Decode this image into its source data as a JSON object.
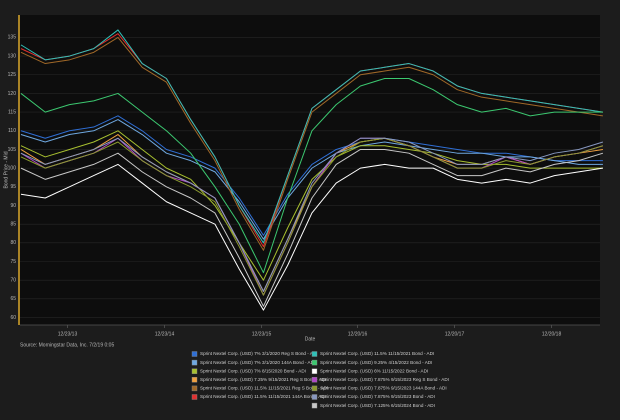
{
  "chart_data": {
    "type": "line",
    "y_label": "Bond Price - Mid",
    "x_label": "Date",
    "source": "Source: Morningstar Data, Inc. 7/2/19 0:05",
    "x": [
      2013.5,
      2013.75,
      2014,
      2014.25,
      2014.5,
      2014.75,
      2015,
      2015.25,
      2015.5,
      2015.75,
      2016,
      2016.25,
      2016.5,
      2016.75,
      2017,
      2017.25,
      2017.5,
      2017.75,
      2018,
      2018.25,
      2018.5,
      2018.75,
      2019,
      2019.25,
      2019.5
    ],
    "xlim": [
      2013.49,
      2019.47
    ],
    "xticks": [
      {
        "value": 2013.98,
        "label": "12/23/13"
      },
      {
        "value": 2014.98,
        "label": "12/23/14"
      },
      {
        "value": 2015.98,
        "label": "12/23/15"
      },
      {
        "value": 2016.97,
        "label": "12/20/16"
      },
      {
        "value": 2017.97,
        "label": "12/20/17"
      },
      {
        "value": 2018.97,
        "label": "12/20/18"
      }
    ],
    "ylim": [
      58,
      141
    ],
    "yticks": [
      60,
      65,
      70,
      75,
      80,
      85,
      90,
      95,
      100,
      105,
      110,
      115,
      120,
      125,
      130,
      135
    ],
    "grid": true,
    "series": [
      {
        "name": "Sprint Nextel Corp. (USD) 7% 3/1/2020 Reg S Bond - ADI",
        "color": "#2f6fd6",
        "values": [
          110,
          108,
          110,
          111,
          114,
          110,
          105,
          103,
          100,
          92,
          82,
          93,
          101,
          105,
          107,
          108,
          107,
          106,
          105,
          104,
          104,
          103,
          102,
          102,
          102
        ]
      },
      {
        "name": "Sprint Nextel Corp. (USD) 7% 3/1/2020 144A Bond - ADI",
        "color": "#6fa8e0",
        "values": [
          109,
          107,
          109,
          110,
          113,
          109,
          104,
          102,
          99,
          91,
          81,
          92,
          100,
          104,
          106,
          107,
          106,
          105,
          104,
          104,
          103,
          103,
          102,
          101,
          101
        ]
      },
      {
        "name": "Sprint Nextel Corp. (USD) 7% 8/15/2020 Bond - ADI",
        "color": "#a8c030",
        "values": [
          106,
          103,
          105,
          107,
          110,
          105,
          100,
          97,
          90,
          80,
          70,
          84,
          97,
          103,
          106,
          106,
          105,
          104,
          102,
          101,
          101,
          100,
          100,
          100,
          100
        ]
      },
      {
        "name": "Sprint Nextel Corp. (USD) 7.25% 9/15/2021 Reg S Bond - ADI",
        "color": "#f0a040",
        "values": [
          105,
          101,
          103,
          105,
          109,
          103,
          99,
          96,
          92,
          80,
          67,
          81,
          95,
          104,
          107,
          108,
          106,
          103,
          101,
          101,
          103,
          101,
          103,
          104,
          105
        ]
      },
      {
        "name": "Sprint Nextel Corp. (USD) 11.5% 11/15/2021 Reg S Bond - ADI",
        "color": "#a06828",
        "values": [
          131,
          128,
          129,
          131,
          135,
          127,
          123,
          112,
          102,
          89,
          78,
          97,
          115,
          120,
          125,
          126,
          127,
          125,
          121,
          119,
          118,
          117,
          116,
          115,
          114
        ]
      },
      {
        "name": "Sprint Nextel Corp. (USD) 11.5% 11/15/2021 144A Bond - ADI",
        "color": "#e03030",
        "values": [
          132,
          129,
          130,
          132,
          136,
          128,
          124,
          113,
          103,
          90,
          79,
          98,
          116,
          121,
          126,
          127,
          128,
          126,
          122,
          120,
          119,
          118,
          117,
          116,
          115
        ]
      },
      {
        "name": "Sprint Nextel Corp. (USD) 11.5% 11/15/2021 Bond - ADI",
        "color": "#30c0b8",
        "values": [
          133,
          129,
          130,
          132,
          137,
          128,
          124,
          113,
          103,
          90,
          80,
          98,
          116,
          121,
          126,
          127,
          128,
          126,
          122,
          120,
          119,
          118,
          117,
          116,
          115
        ]
      },
      {
        "name": "Sprint Nextel Corp. (USD) 9.25% 4/15/2022 Bond - ADI",
        "color": "#3cc870",
        "values": [
          120,
          115,
          117,
          118,
          120,
          115,
          110,
          104,
          95,
          85,
          72,
          92,
          110,
          117,
          122,
          124,
          124,
          121,
          117,
          115,
          116,
          114,
          115,
          115,
          115
        ]
      },
      {
        "name": "Sprint Nextel Corp. (USD) 6% 11/15/2022 Bond - ADI",
        "color": "#ffffff",
        "values": [
          93,
          92,
          95,
          98,
          101,
          96,
          91,
          88,
          85,
          73,
          62,
          74,
          88,
          96,
          100,
          101,
          100,
          100,
          97,
          96,
          97,
          96,
          98,
          99,
          100
        ]
      },
      {
        "name": "Sprint Nextel Corp. (USD) 7.875% 9/15/2023 Reg S Bond - ADI",
        "color": "#b048c8",
        "values": [
          104,
          100,
          102,
          104,
          108,
          102,
          98,
          96,
          92,
          80,
          66,
          80,
          95,
          104,
          108,
          108,
          106,
          103,
          100,
          100,
          103,
          101,
          103,
          104,
          106
        ]
      },
      {
        "name": "Sprint Nextel Corp. (USD) 7.875% 9/15/2023 144A Bond - ADI",
        "color": "#8c9a30",
        "values": [
          103,
          100,
          102,
          104,
          107,
          102,
          98,
          95,
          91,
          79,
          66,
          80,
          95,
          103,
          107,
          108,
          106,
          103,
          100,
          100,
          102,
          101,
          103,
          104,
          106
        ]
      },
      {
        "name": "Sprint Nextel Corp. (USD) 7.875% 9/15/2023 Bond - ADI",
        "color": "#8898c0",
        "values": [
          104,
          101,
          103,
          105,
          108,
          103,
          99,
          96,
          92,
          80,
          67,
          81,
          96,
          104,
          108,
          108,
          107,
          104,
          101,
          101,
          103,
          102,
          104,
          105,
          107
        ]
      },
      {
        "name": "Sprint Nextel Corp. (USD) 7.125% 6/15/2024 Bond - ADI",
        "color": "#c8c8c8",
        "values": [
          100,
          97,
          99,
          101,
          104,
          99,
          95,
          92,
          88,
          76,
          63,
          77,
          92,
          101,
          105,
          105,
          104,
          101,
          98,
          98,
          100,
          99,
          101,
          102,
          104
        ]
      }
    ]
  }
}
